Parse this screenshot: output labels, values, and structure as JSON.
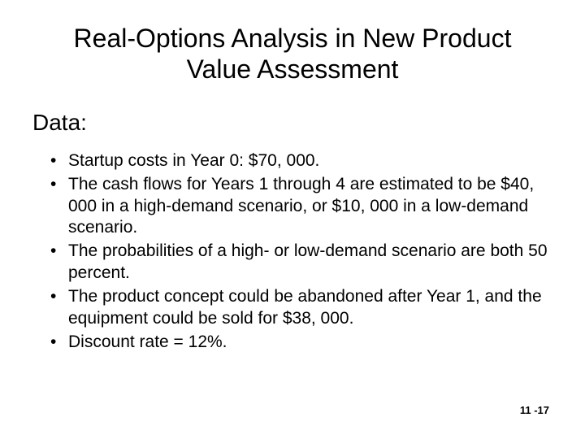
{
  "title": "Real-Options Analysis in New Product Value Assessment",
  "subtitle": "Data:",
  "bullets": [
    "Startup costs in Year 0: $70, 000.",
    "The cash flows for Years 1 through 4 are estimated to be $40, 000 in a high-demand scenario, or $10, 000 in a low-demand scenario.",
    "The probabilities of a high- or low-demand scenario are both 50 percent.",
    "The product concept could be abandoned after Year 1, and the equipment could be sold for $38, 000.",
    "Discount rate = 12%."
  ],
  "page_number": "11 -17",
  "styling": {
    "background_color": "#ffffff",
    "text_color": "#000000",
    "title_fontsize": 32,
    "subtitle_fontsize": 28,
    "bullet_fontsize": 21,
    "page_number_fontsize": 13,
    "font_family": "Arial"
  }
}
